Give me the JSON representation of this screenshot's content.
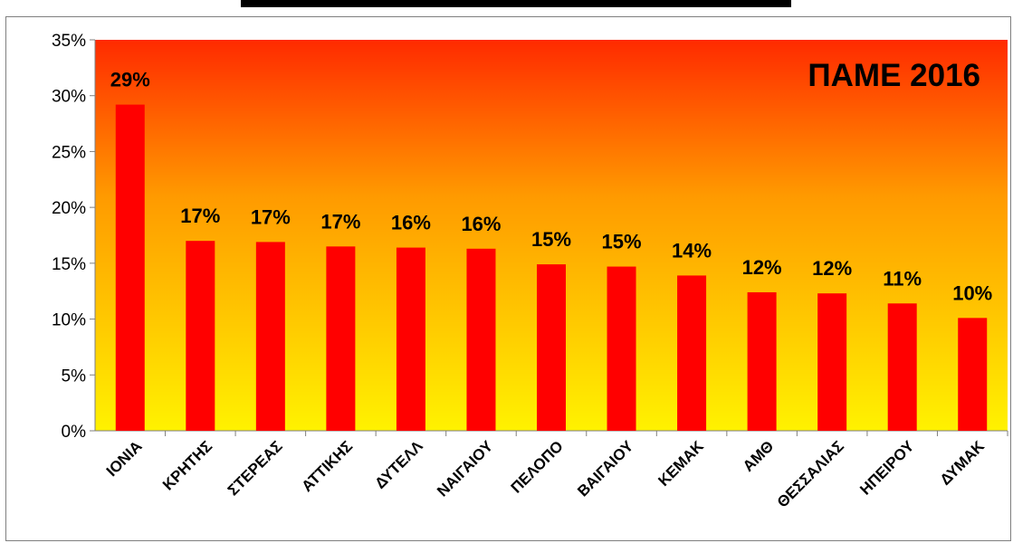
{
  "chart_data": {
    "type": "bar",
    "title": "ΠΑΜΕ 2016",
    "categories": [
      "ΙΟΝΙΑ",
      "ΚΡΗΤΗΣ",
      "ΣΤΕΡΕΑΣ",
      "ΑΤΤΙΚΗΣ",
      "ΔΥΤΕΛΛ",
      "ΝΑΙΓΑΙΟΥ",
      "ΠΕΛΟΠΟ",
      "ΒΑΙΓΑΙΟΥ",
      "ΚΕΜΑΚ",
      "ΑΜΘ",
      "ΘΕΣΣΑΛΙΑΣ",
      "ΗΠΕΙΡΟΥ",
      "ΔΥΜΑΚ"
    ],
    "values": [
      0.292,
      0.17,
      0.169,
      0.165,
      0.164,
      0.163,
      0.149,
      0.147,
      0.139,
      0.124,
      0.123,
      0.114,
      0.101
    ],
    "data_labels": [
      "29%",
      "17%",
      "17%",
      "17%",
      "16%",
      "16%",
      "15%",
      "15%",
      "14%",
      "12%",
      "12%",
      "11%",
      "10%"
    ],
    "yticks": [
      "0%",
      "5%",
      "10%",
      "15%",
      "20%",
      "25%",
      "30%",
      "35%"
    ],
    "ylim": [
      0,
      0.35
    ],
    "grid": false,
    "xlabel": "",
    "ylabel": "",
    "colors": {
      "bar": "#ff0000",
      "bg_top": "#ff2a00",
      "bg_mid": "#ff9a00",
      "bg_bottom": "#fff200",
      "text": "#000000"
    }
  }
}
